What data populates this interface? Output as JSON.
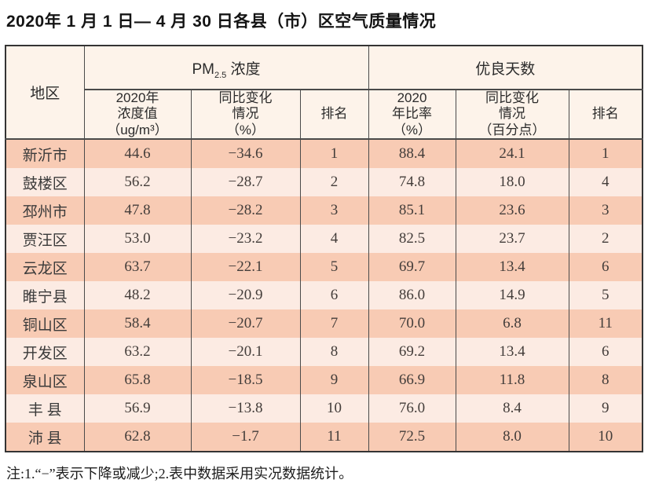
{
  "page": {
    "title": "2020年 1 月 1 日— 4 月 30 日各县（市）区空气质量情况",
    "note": "注:1.“−”表示下降或减少;2.表中数据采用实况数据统计。"
  },
  "colors": {
    "row_odd": "#f8cbb4",
    "row_even": "#fcebe3",
    "header_bg": "#fdf3ea",
    "border": "#4a4a4a"
  },
  "table": {
    "region_header": "地区",
    "group_headers": {
      "pm_prefix": "PM",
      "pm_sub": "2.5",
      "pm_suffix": " 浓度",
      "good": "优良天数"
    },
    "sub_headers": {
      "pm_value": "2020年\n浓度值\n（ug/m³）",
      "pm_change": "同比变化\n情况\n（%）",
      "pm_rank": "排名",
      "good_ratio": "2020\n年比率\n（%）",
      "good_change": "同比变化\n情况\n（百分点）",
      "good_rank": "排名"
    },
    "rows": [
      {
        "region": "新沂市",
        "pm_value": "44.6",
        "pm_change": "−34.6",
        "pm_rank": "1",
        "good_ratio": "88.4",
        "good_change": "24.1",
        "good_rank": "1"
      },
      {
        "region": "鼓楼区",
        "pm_value": "56.2",
        "pm_change": "−28.7",
        "pm_rank": "2",
        "good_ratio": "74.8",
        "good_change": "18.0",
        "good_rank": "4"
      },
      {
        "region": "邳州市",
        "pm_value": "47.8",
        "pm_change": "−28.2",
        "pm_rank": "3",
        "good_ratio": "85.1",
        "good_change": "23.6",
        "good_rank": "3"
      },
      {
        "region": "贾汪区",
        "pm_value": "53.0",
        "pm_change": "−23.2",
        "pm_rank": "4",
        "good_ratio": "82.5",
        "good_change": "23.7",
        "good_rank": "2"
      },
      {
        "region": "云龙区",
        "pm_value": "63.7",
        "pm_change": "−22.1",
        "pm_rank": "5",
        "good_ratio": "69.7",
        "good_change": "13.4",
        "good_rank": "6"
      },
      {
        "region": "睢宁县",
        "pm_value": "48.2",
        "pm_change": "−20.9",
        "pm_rank": "6",
        "good_ratio": "86.0",
        "good_change": "14.9",
        "good_rank": "5"
      },
      {
        "region": "铜山区",
        "pm_value": "58.4",
        "pm_change": "−20.7",
        "pm_rank": "7",
        "good_ratio": "70.0",
        "good_change": "6.8",
        "good_rank": "11"
      },
      {
        "region": "开发区",
        "pm_value": "63.2",
        "pm_change": "−20.1",
        "pm_rank": "8",
        "good_ratio": "69.2",
        "good_change": "13.4",
        "good_rank": "6"
      },
      {
        "region": "泉山区",
        "pm_value": "65.8",
        "pm_change": "−18.5",
        "pm_rank": "9",
        "good_ratio": "66.9",
        "good_change": "11.8",
        "good_rank": "8"
      },
      {
        "region": "丰 县",
        "pm_value": "56.9",
        "pm_change": "−13.8",
        "pm_rank": "10",
        "good_ratio": "76.0",
        "good_change": "8.4",
        "good_rank": "9"
      },
      {
        "region": "沛 县",
        "pm_value": "62.8",
        "pm_change": "−1.7",
        "pm_rank": "11",
        "good_ratio": "72.5",
        "good_change": "8.0",
        "good_rank": "10"
      }
    ]
  }
}
